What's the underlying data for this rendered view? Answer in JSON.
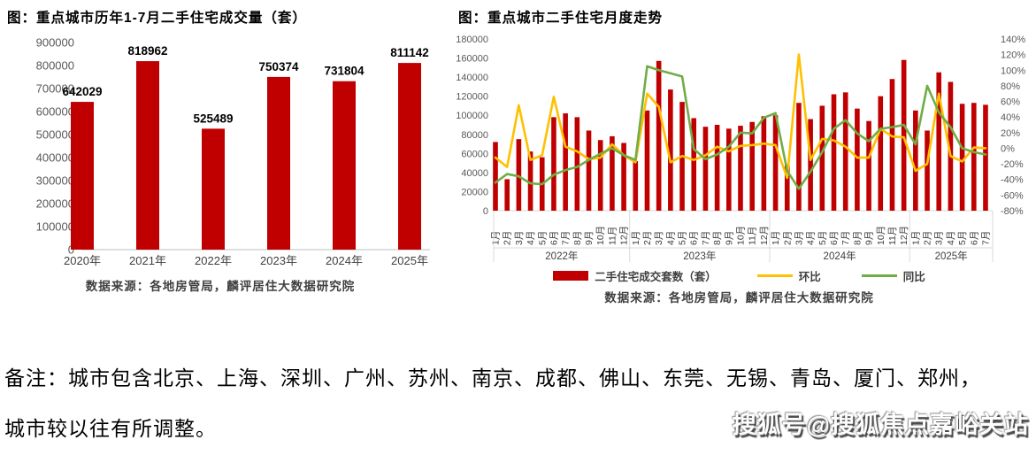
{
  "page": {
    "note_line1": "备注：城市包含北京、上海、深圳、广州、苏州、南京、成都、佛山、东莞、无锡、青岛、厦门、郑州，",
    "note_line2": "城市较以往有所调整。",
    "watermark": "搜狐号@搜狐焦点嘉峪关站"
  },
  "colors": {
    "bar_red": "#c00000",
    "huanbi_yellow": "#ffc000",
    "tongbi_green": "#70ad47",
    "axis_text": "#595959",
    "axis_line": "#d9d9d9"
  },
  "chart_data": [
    {
      "type": "bar",
      "title": "图：重点城市历年1-7月二手住宅成交量（套）",
      "source": "数据来源：各地房管局，麟评居住大数据研究院",
      "categories": [
        "2020年",
        "2021年",
        "2022年",
        "2023年",
        "2024年",
        "2025年"
      ],
      "values": [
        642029,
        818962,
        525489,
        750374,
        731804,
        811142
      ],
      "ylim": [
        0,
        900000
      ],
      "ytick_step": 100000,
      "bar_color": "#c00000",
      "grid": false,
      "value_labels": true
    },
    {
      "type": "combo-bar-line",
      "title": "图：重点城市二手住宅月度走势",
      "source": "数据来源：各地房管局，麟评居住大数据研究院",
      "month_labels": [
        "1月",
        "2月",
        "3月",
        "4月",
        "5月",
        "6月",
        "7月",
        "8月",
        "9月",
        "10月",
        "11月",
        "12月"
      ],
      "groups": [
        {
          "label": "2022年",
          "months": 12
        },
        {
          "label": "2023年",
          "months": 12
        },
        {
          "label": "2024年",
          "months": 12
        },
        {
          "label": "2025年",
          "months": 7
        }
      ],
      "left_axis": {
        "min": 0,
        "max": 180000,
        "step": 20000
      },
      "right_axis": {
        "min": -80,
        "max": 140,
        "step": 20,
        "suffix": "%"
      },
      "grid": false,
      "legend_position": "bottom",
      "series": [
        {
          "name": "二手住宅成交套数（套）",
          "type": "bar",
          "axis": "left",
          "color": "#c00000",
          "values": [
            72000,
            33000,
            75000,
            62000,
            56000,
            98000,
            102000,
            98000,
            84000,
            74000,
            78000,
            71000,
            52000,
            105000,
            157000,
            127000,
            114000,
            97000,
            88000,
            90000,
            86000,
            89000,
            93000,
            99000,
            100000,
            48000,
            113000,
            96000,
            110000,
            122000,
            124000,
            107000,
            94000,
            120000,
            138000,
            158000,
            105000,
            84000,
            145000,
            135000,
            112000,
            113000,
            111000
          ]
        },
        {
          "name": "环比",
          "type": "line",
          "axis": "right",
          "color": "#ffc000",
          "values": [
            -12,
            -24,
            55,
            -15,
            -9,
            66,
            2,
            -4,
            -14,
            -12,
            5,
            -9,
            -18,
            70,
            53,
            -18,
            -10,
            -15,
            -9,
            2,
            -4,
            3,
            4,
            6,
            4,
            -38,
            120,
            -15,
            12,
            10,
            2,
            -12,
            -12,
            25,
            15,
            14,
            -29,
            -20,
            70,
            -10,
            -17,
            1,
            0
          ]
        },
        {
          "name": "同比",
          "type": "line",
          "axis": "right",
          "color": "#70ad47",
          "values": [
            -44,
            -33,
            -36,
            -45,
            -46,
            -34,
            -28,
            -24,
            -15,
            -7,
            0,
            -9,
            -15,
            105,
            100,
            96,
            92,
            -1,
            -14,
            -8,
            2,
            20,
            19,
            39,
            45,
            -29,
            -52,
            -30,
            -5,
            25,
            36,
            19,
            9,
            25,
            27,
            30,
            5,
            80,
            46,
            27,
            0,
            -5,
            -8
          ]
        }
      ]
    }
  ]
}
